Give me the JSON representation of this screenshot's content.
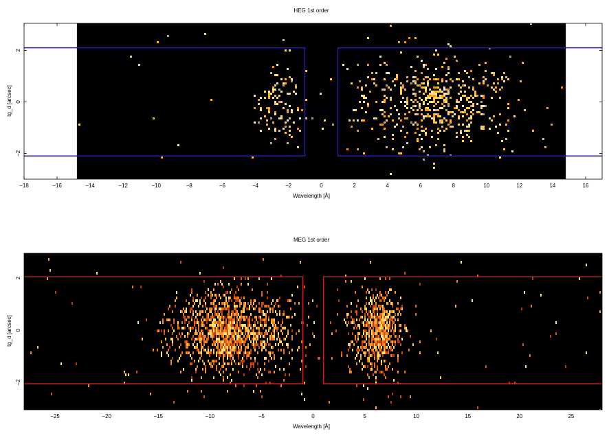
{
  "chart_data": [
    {
      "id": "heg",
      "type": "heatmap",
      "title": "HEG 1st order",
      "xlabel": "Wavelength [Å]",
      "ylabel": "tg_d [arcsec]",
      "xlim": [
        -18,
        17
      ],
      "ylim": [
        -3.0,
        3.05
      ],
      "x_ticks": [
        -18,
        -16,
        -14,
        -12,
        -10,
        -8,
        -6,
        -4,
        -2,
        0,
        2,
        4,
        6,
        8,
        10,
        12,
        14,
        16
      ],
      "y_ticks": [
        -2,
        0,
        2
      ],
      "data_range_x": [
        -14.8,
        14.8
      ],
      "colormap": "heat-yellow",
      "box_color": "#1a1adc",
      "extraction_regions": [
        {
          "x": [
            -40,
            -1.0
          ],
          "y": [
            -2.1,
            2.1
          ]
        },
        {
          "x": [
            1.0,
            40
          ],
          "y": [
            -2.1,
            2.1
          ]
        }
      ],
      "clusters": [
        {
          "xc": -2.6,
          "sx": 0.7,
          "yc": 0.0,
          "sy": 0.85,
          "n": 110
        },
        {
          "xc": 6.8,
          "sx": 2.7,
          "yc": 0.0,
          "sy": 0.85,
          "n": 480
        },
        {
          "xc": 6.8,
          "sx": 0.6,
          "yc": 0.0,
          "sy": 0.6,
          "n": 90
        }
      ],
      "background_counts": 22
    },
    {
      "id": "meg",
      "type": "heatmap",
      "title": "MEG 1st order",
      "xlabel": "Wavelength [Å]",
      "ylabel": "tg_d [arcsec]",
      "xlim": [
        -28,
        28
      ],
      "ylim": [
        -3.05,
        2.95
      ],
      "x_ticks": [
        -25,
        -20,
        -15,
        -10,
        -5,
        0,
        5,
        10,
        15,
        20,
        25
      ],
      "y_ticks": [
        -2,
        0,
        2
      ],
      "data_range_x": [
        -28,
        28
      ],
      "colormap": "heat-orange",
      "box_color": "#c81e1e",
      "extraction_regions": [
        {
          "x": [
            -40,
            -1.0
          ],
          "y": [
            -2.05,
            2.05
          ]
        },
        {
          "x": [
            1.0,
            40
          ],
          "y": [
            -2.05,
            2.05
          ]
        }
      ],
      "clusters": [
        {
          "xc": -8.0,
          "sx": 3.0,
          "yc": 0.0,
          "sy": 0.8,
          "n": 1300
        },
        {
          "xc": -8.5,
          "sx": 0.9,
          "yc": 0.0,
          "sy": 0.5,
          "n": 160
        },
        {
          "xc": 6.0,
          "sx": 1.3,
          "yc": 0.0,
          "sy": 0.8,
          "n": 650
        },
        {
          "xc": 6.6,
          "sx": 0.4,
          "yc": 0.0,
          "sy": 0.5,
          "n": 120
        }
      ],
      "background_counts": 90
    }
  ]
}
